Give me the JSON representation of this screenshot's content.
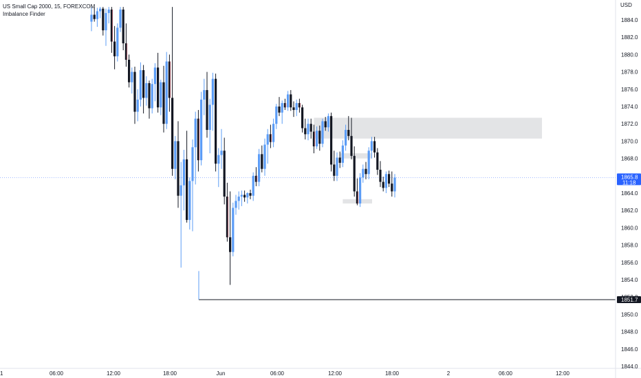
{
  "header": {
    "symbol_title": "US Small Cap 2000, 15, FOREXCOM",
    "indicator": "Imbalance Finder"
  },
  "price_axis": {
    "currency": "USD",
    "ticks": [
      "1884.0",
      "1882.0",
      "1880.0",
      "1878.0",
      "1876.0",
      "1874.0",
      "1872.0",
      "1870.0",
      "1868.0",
      "1866.0",
      "1864.0",
      "1862.0",
      "1860.0",
      "1858.0",
      "1856.0",
      "1854.0",
      "1852.0",
      "1850.0",
      "1848.0",
      "1846.0",
      "1844.0"
    ],
    "last_price_label": "1865.8",
    "countdown_label": "11:18",
    "line_price_label": "1851.7"
  },
  "time_axis": {
    "labels": [
      "1",
      "06:00",
      "12:00",
      "18:00",
      "Jun",
      "06:00",
      "12:00",
      "18:00",
      "2",
      "06:00",
      "12:00"
    ]
  },
  "colors": {
    "up": "#5b9cf6",
    "down": "#131722",
    "down_accent": "#d1727d",
    "imbalance_box": "#e3e4e6",
    "last_price": "#2962ff",
    "line": "#131722"
  },
  "chart_data": {
    "type": "candlestick",
    "title": "US Small Cap 2000, 15, FOREXCOM",
    "ylabel": "USD",
    "ylim": [
      1843.0,
      1885.5
    ],
    "last_price": 1865.8,
    "horizontal_line": 1851.7,
    "candles": [
      [
        1883.8,
        1885.5,
        1882.7,
        1884.6
      ],
      [
        1884.6,
        1885.5,
        1883.8,
        1884.1
      ],
      [
        1884.1,
        1885.4,
        1883.2,
        1885.0
      ],
      [
        1885.0,
        1885.5,
        1884.2,
        1885.3
      ],
      [
        1885.3,
        1885.5,
        1882.2,
        1882.8
      ],
      [
        1882.8,
        1885.3,
        1881.0,
        1884.8
      ],
      [
        1884.8,
        1885.5,
        1883.6,
        1885.2
      ],
      [
        1885.2,
        1885.5,
        1880.2,
        1881.5
      ],
      [
        1881.5,
        1883.3,
        1878.3,
        1879.8
      ],
      [
        1879.8,
        1883.6,
        1879.2,
        1883.1
      ],
      [
        1883.1,
        1885.5,
        1882.6,
        1885.2
      ],
      [
        1885.2,
        1885.5,
        1880.5,
        1881.3
      ],
      [
        1881.3,
        1883.6,
        1878.6,
        1879.4
      ],
      [
        1879.4,
        1880.0,
        1876.2,
        1876.8
      ],
      [
        1876.8,
        1878.5,
        1875.5,
        1878.0
      ],
      [
        1878.0,
        1878.6,
        1872.0,
        1873.4
      ],
      [
        1873.4,
        1876.0,
        1872.3,
        1874.8
      ],
      [
        1874.8,
        1879.1,
        1874.0,
        1878.2
      ],
      [
        1878.2,
        1878.8,
        1873.2,
        1875.0
      ],
      [
        1875.0,
        1877.5,
        1874.1,
        1876.7
      ],
      [
        1876.7,
        1877.0,
        1872.6,
        1873.8
      ],
      [
        1873.8,
        1877.2,
        1873.2,
        1876.6
      ],
      [
        1876.6,
        1879.0,
        1874.6,
        1878.5
      ],
      [
        1878.5,
        1880.2,
        1873.3,
        1873.9
      ],
      [
        1873.9,
        1877.1,
        1873.0,
        1876.8
      ],
      [
        1876.8,
        1878.7,
        1871.0,
        1872.0
      ],
      [
        1872.0,
        1880.3,
        1871.4,
        1879.2
      ],
      [
        1879.2,
        1880.0,
        1873.4,
        1875.0
      ],
      [
        1875.0,
        1885.5,
        1866.0,
        1866.8
      ],
      [
        1866.8,
        1870.6,
        1865.6,
        1870.0
      ],
      [
        1870.0,
        1872.3,
        1862.3,
        1863.7
      ],
      [
        1863.7,
        1867.6,
        1855.4,
        1864.9
      ],
      [
        1864.9,
        1869.0,
        1862.0,
        1867.9
      ],
      [
        1867.9,
        1871.2,
        1860.6,
        1860.9
      ],
      [
        1860.9,
        1865.8,
        1859.8,
        1865.4
      ],
      [
        1865.4,
        1870.2,
        1859.6,
        1869.3
      ],
      [
        1869.3,
        1873.4,
        1865.0,
        1872.6
      ],
      [
        1872.6,
        1873.6,
        1866.5,
        1867.8
      ],
      [
        1867.8,
        1875.7,
        1867.2,
        1874.8
      ],
      [
        1874.8,
        1877.2,
        1873.0,
        1875.9
      ],
      [
        1875.9,
        1878.0,
        1870.4,
        1871.3
      ],
      [
        1871.3,
        1874.9,
        1868.6,
        1874.2
      ],
      [
        1874.2,
        1877.9,
        1871.2,
        1877.2
      ],
      [
        1877.2,
        1877.8,
        1866.5,
        1867.4
      ],
      [
        1867.4,
        1869.2,
        1864.7,
        1868.4
      ],
      [
        1868.4,
        1871.4,
        1866.8,
        1868.9
      ],
      [
        1868.9,
        1870.4,
        1862.7,
        1863.6
      ],
      [
        1863.6,
        1865.2,
        1858.4,
        1858.9
      ],
      [
        1858.9,
        1864.2,
        1853.4,
        1857.2
      ],
      [
        1857.2,
        1862.9,
        1856.7,
        1862.3
      ],
      [
        1862.3,
        1863.8,
        1861.5,
        1863.1
      ],
      [
        1863.1,
        1864.2,
        1862.1,
        1863.6
      ],
      [
        1863.6,
        1864.3,
        1862.5,
        1863.8
      ],
      [
        1863.8,
        1864.3,
        1863.0,
        1863.5
      ],
      [
        1863.5,
        1864.1,
        1862.8,
        1864.0
      ],
      [
        1864.0,
        1864.4,
        1863.3,
        1863.7
      ],
      [
        1863.7,
        1866.4,
        1863.1,
        1866.0
      ],
      [
        1866.0,
        1867.0,
        1864.8,
        1865.3
      ],
      [
        1865.3,
        1869.1,
        1864.8,
        1868.5
      ],
      [
        1868.5,
        1869.5,
        1866.4,
        1866.8
      ],
      [
        1866.8,
        1870.3,
        1866.0,
        1869.6
      ],
      [
        1869.6,
        1871.4,
        1867.4,
        1870.8
      ],
      [
        1870.8,
        1871.9,
        1869.2,
        1869.9
      ],
      [
        1869.9,
        1872.6,
        1869.3,
        1872.0
      ],
      [
        1872.0,
        1874.3,
        1871.4,
        1874.0
      ],
      [
        1874.0,
        1875.1,
        1872.9,
        1873.3
      ],
      [
        1873.3,
        1874.7,
        1872.0,
        1874.4
      ],
      [
        1874.4,
        1874.9,
        1873.6,
        1873.9
      ],
      [
        1873.9,
        1875.8,
        1873.5,
        1875.4
      ],
      [
        1875.4,
        1875.9,
        1873.5,
        1873.9
      ],
      [
        1873.9,
        1874.6,
        1872.8,
        1873.6
      ],
      [
        1873.6,
        1874.8,
        1872.9,
        1874.4
      ],
      [
        1874.4,
        1874.9,
        1873.3,
        1873.9
      ],
      [
        1873.9,
        1874.2,
        1871.0,
        1871.5
      ],
      [
        1871.5,
        1872.6,
        1870.2,
        1870.8
      ],
      [
        1870.8,
        1872.6,
        1870.1,
        1872.0
      ],
      [
        1872.0,
        1872.6,
        1870.3,
        1871.1
      ],
      [
        1871.1,
        1871.9,
        1868.6,
        1869.4
      ],
      [
        1869.4,
        1871.7,
        1869.1,
        1871.2
      ],
      [
        1871.2,
        1871.8,
        1868.9,
        1869.7
      ],
      [
        1869.7,
        1872.6,
        1869.3,
        1872.3
      ],
      [
        1872.3,
        1872.8,
        1871.2,
        1871.6
      ],
      [
        1871.6,
        1873.2,
        1871.1,
        1872.9
      ],
      [
        1872.9,
        1873.3,
        1866.5,
        1867.3
      ],
      [
        1867.3,
        1868.9,
        1865.4,
        1866.0
      ],
      [
        1866.0,
        1868.7,
        1865.4,
        1868.1
      ],
      [
        1868.1,
        1868.8,
        1866.9,
        1867.5
      ],
      [
        1867.5,
        1870.1,
        1867.0,
        1869.5
      ],
      [
        1869.5,
        1871.9,
        1868.9,
        1871.3
      ],
      [
        1871.3,
        1872.9,
        1870.1,
        1870.6
      ],
      [
        1870.6,
        1872.7,
        1867.9,
        1868.3
      ],
      [
        1868.3,
        1869.4,
        1863.6,
        1864.2
      ],
      [
        1864.2,
        1865.7,
        1862.6,
        1862.8
      ],
      [
        1862.8,
        1866.3,
        1862.4,
        1865.8
      ],
      [
        1865.8,
        1867.3,
        1865.2,
        1866.8
      ],
      [
        1866.8,
        1867.6,
        1865.6,
        1866.2
      ],
      [
        1866.2,
        1869.3,
        1865.6,
        1868.9
      ],
      [
        1868.9,
        1870.5,
        1868.0,
        1870.0
      ],
      [
        1870.0,
        1870.5,
        1868.1,
        1868.7
      ],
      [
        1868.7,
        1869.2,
        1866.1,
        1866.7
      ],
      [
        1866.7,
        1867.7,
        1864.7,
        1865.3
      ],
      [
        1865.3,
        1865.9,
        1864.2,
        1864.6
      ],
      [
        1864.6,
        1866.5,
        1864.0,
        1866.2
      ],
      [
        1866.2,
        1866.6,
        1864.7,
        1865.1
      ],
      [
        1865.1,
        1866.5,
        1863.6,
        1864.2
      ],
      [
        1864.2,
        1866.2,
        1863.5,
        1865.8
      ]
    ],
    "imbalance_zones": [
      {
        "x_start_index": 82,
        "price_top": 1872.7,
        "price_bottom": 1870.3
      },
      {
        "x_start_index": 91,
        "price_top": 1868.6,
        "price_bottom": 1868.0
      },
      {
        "x_start_index": 92,
        "price_top": 1863.3,
        "price_bottom": 1862.8
      }
    ]
  }
}
